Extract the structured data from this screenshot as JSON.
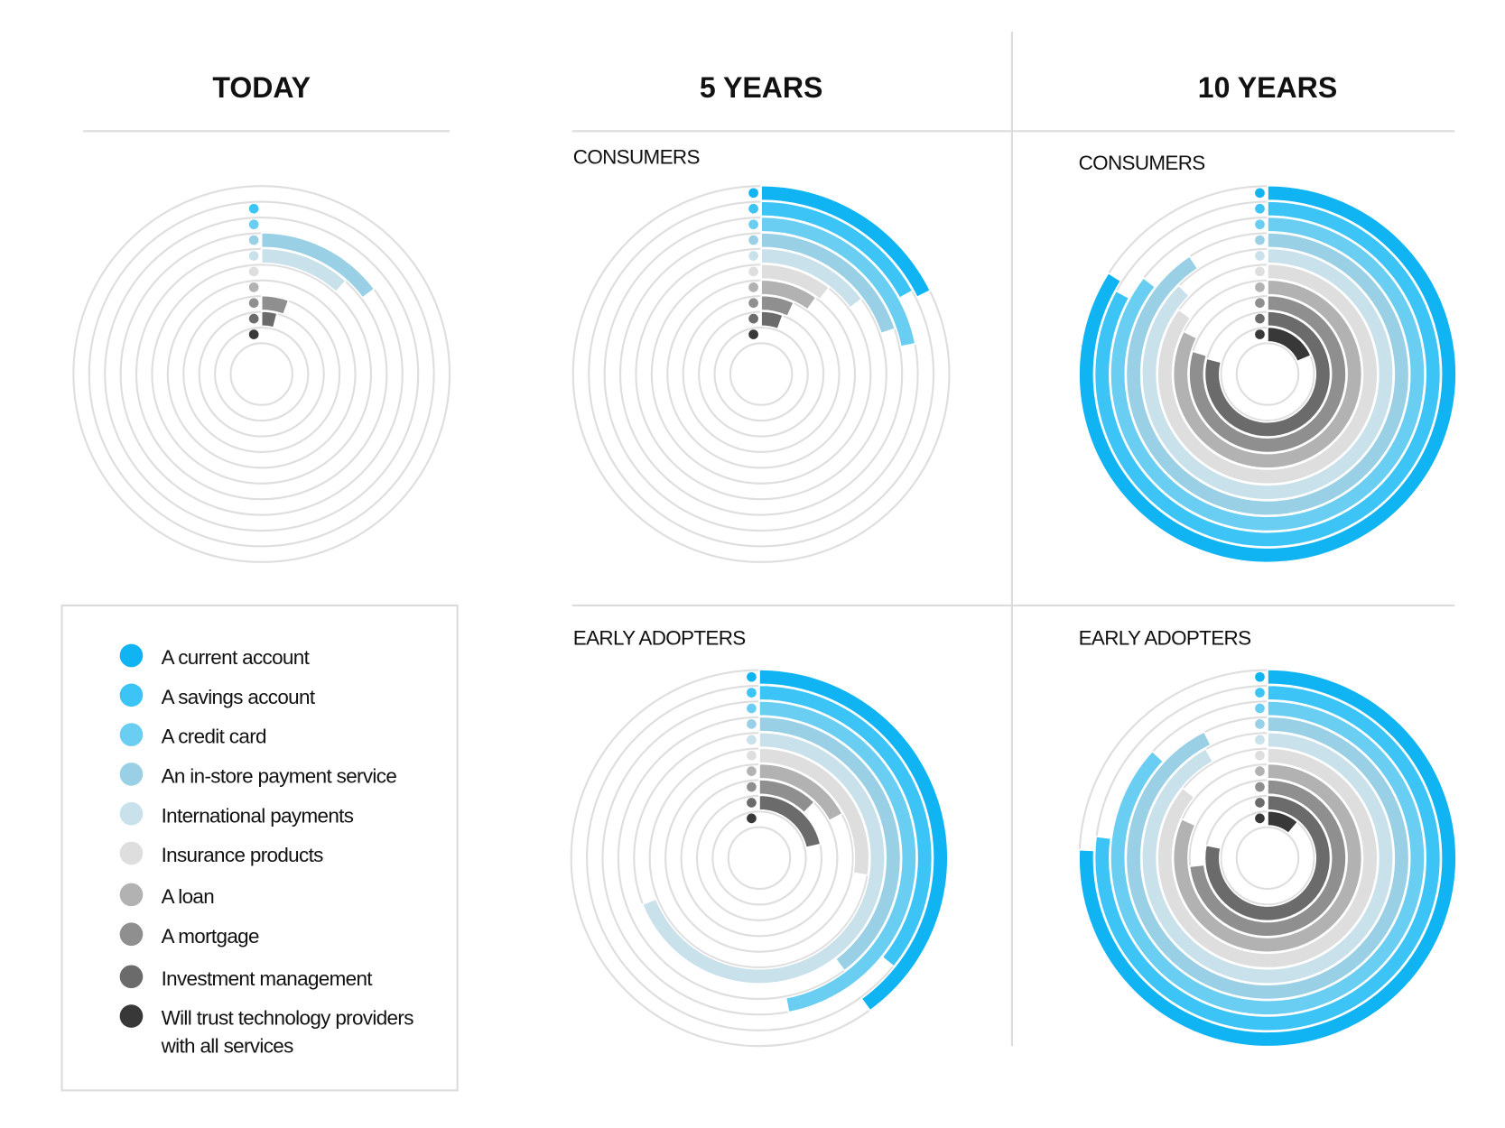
{
  "headers": {
    "today": "TODAY",
    "five": "5 YEARS",
    "ten": "10 YEARS"
  },
  "subheaders": {
    "consumers": "CONSUMERS",
    "early_adopters": "EARLY ADOPTERS"
  },
  "legend": [
    {
      "label": "A current account",
      "color": "#10b4f2"
    },
    {
      "label": "A savings account",
      "color": "#3cc4f7"
    },
    {
      "label": "A credit card",
      "color": "#6acdf2"
    },
    {
      "label": "An in-store payment service",
      "color": "#9ad0e6"
    },
    {
      "label": "International payments",
      "color": "#c9e1ea"
    },
    {
      "label": "Insurance products",
      "color": "#dedede"
    },
    {
      "label": "A loan",
      "color": "#b2b2b2"
    },
    {
      "label": "A mortgage",
      "color": "#8f8f8f"
    },
    {
      "label": "Investment management",
      "color": "#6b6b6b"
    },
    {
      "label": "Will trust technology providers",
      "label2": "with all services",
      "color": "#383838"
    }
  ],
  "chart_data": [
    {
      "type": "radial-bar",
      "id": "today",
      "period": "TODAY",
      "segment": "",
      "unit": "fraction of full circle",
      "categories": [
        "A current account",
        "A savings account",
        "A credit card",
        "An in-store payment service",
        "International payments",
        "Insurance products",
        "A loan",
        "A mortgage",
        "Investment management",
        "Will trust technology providers with all services"
      ],
      "values": [
        0,
        0,
        0,
        0.147,
        0.117,
        0,
        0,
        0.056,
        0.04,
        0
      ],
      "first_marker_shown": false
    },
    {
      "type": "radial-bar",
      "id": "five-consumers",
      "period": "5 YEARS",
      "segment": "CONSUMERS",
      "unit": "fraction of full circle",
      "categories": [
        "A current account",
        "A savings account",
        "A credit card",
        "An in-store payment service",
        "International payments",
        "Insurance products",
        "A loan",
        "A mortgage",
        "Investment management",
        "Will trust technology providers with all services"
      ],
      "values": [
        0.177,
        0.17,
        0.219,
        0.198,
        0.148,
        0.106,
        0.099,
        0.068,
        0.056,
        0
      ],
      "first_marker_shown": true
    },
    {
      "type": "radial-bar",
      "id": "ten-consumers",
      "period": "10 YEARS",
      "segment": "CONSUMERS",
      "unit": "fraction of full circle",
      "categories": [
        "A current account",
        "A savings account",
        "A credit card",
        "An in-store payment service",
        "International payments",
        "Insurance products",
        "A loan",
        "A mortgage",
        "Investment management",
        "Will trust technology providers with all services"
      ],
      "values": [
        0.84,
        0.83,
        0.855,
        0.907,
        0.875,
        0.85,
        0.825,
        0.797,
        0.79,
        0.186
      ],
      "first_marker_shown": true
    },
    {
      "type": "radial-bar",
      "id": "five-early",
      "period": "5 YEARS",
      "segment": "EARLY ADOPTERS",
      "unit": "fraction of full circle",
      "categories": [
        "A current account",
        "A savings account",
        "A credit card",
        "An in-store payment service",
        "International payments",
        "Insurance products",
        "A loan",
        "A mortgage",
        "Investment management",
        "Will trust technology providers with all services"
      ],
      "values": [
        0.4,
        0.358,
        0.47,
        0.397,
        0.69,
        0.275,
        0.172,
        0.124,
        0.215,
        0
      ],
      "first_marker_shown": true
    },
    {
      "type": "radial-bar",
      "id": "ten-early",
      "period": "10 YEARS",
      "segment": "EARLY ADOPTERS",
      "unit": "fraction of full circle",
      "categories": [
        "A current account",
        "A savings account",
        "A credit card",
        "An in-store payment service",
        "International payments",
        "Insurance products",
        "A loan",
        "A mortgage",
        "Investment management",
        "Will trust technology providers with all services"
      ],
      "values": [
        0.757,
        0.77,
        0.869,
        0.926,
        0.918,
        0.86,
        0.818,
        0.733,
        0.783,
        0.111
      ],
      "first_marker_shown": true
    }
  ]
}
